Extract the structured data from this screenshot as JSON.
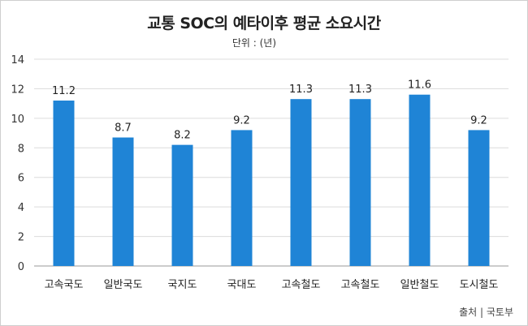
{
  "title": "교통 SOC의 예타이후 평균 소요시간",
  "unit_label": "단위 : (년)",
  "source": "출처 | 국토부",
  "chart_data": {
    "type": "bar",
    "title": "교통 SOC의 예타이후 평균 소요시간",
    "categories": [
      "고속국도",
      "일반국도",
      "국지도",
      "국대도",
      "고속철도",
      "고속철도",
      "일반철도",
      "도시철도"
    ],
    "values": [
      11.2,
      8.7,
      8.2,
      9.2,
      11.3,
      11.3,
      11.6,
      9.2
    ],
    "data_labels": [
      "11.2",
      "8.7",
      "8.2",
      "9.2",
      "11.3",
      "11.3",
      "11.6",
      "9.2"
    ],
    "y_ticks": [
      "0",
      "2",
      "4",
      "6",
      "8",
      "10",
      "12",
      "14"
    ],
    "ylim": [
      0,
      14
    ],
    "bar_color": "#1f84d6",
    "grid": true,
    "legend": "none"
  }
}
